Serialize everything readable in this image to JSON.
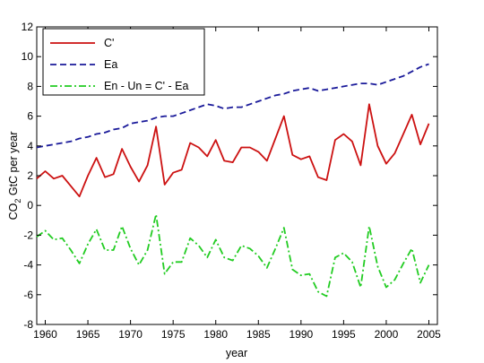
{
  "chart_data": {
    "type": "line",
    "xlabel": "year",
    "ylabel": "CO",
    "ylabel_sub": "2",
    "ylabel_rest": " GtC per year",
    "xlim": [
      1959,
      2006
    ],
    "ylim": [
      -8,
      12
    ],
    "xticks": [
      1960,
      1965,
      1970,
      1975,
      1980,
      1985,
      1990,
      1995,
      2000,
      2005
    ],
    "yticks": [
      -8,
      -6,
      -4,
      -2,
      0,
      2,
      4,
      6,
      8,
      10,
      12
    ],
    "grid": false,
    "legend_position": "top-left",
    "x": [
      1959,
      1960,
      1961,
      1962,
      1963,
      1964,
      1965,
      1966,
      1967,
      1968,
      1969,
      1970,
      1971,
      1972,
      1973,
      1974,
      1975,
      1976,
      1977,
      1978,
      1979,
      1980,
      1981,
      1982,
      1983,
      1984,
      1985,
      1986,
      1987,
      1988,
      1989,
      1990,
      1991,
      1992,
      1993,
      1994,
      1995,
      1996,
      1997,
      1998,
      1999,
      2000,
      2001,
      2002,
      2003,
      2004,
      2005
    ],
    "series": [
      {
        "name": "C'",
        "color": "#cc1111",
        "dash": "solid",
        "values": [
          1.8,
          2.3,
          1.8,
          2.0,
          1.3,
          0.6,
          2.0,
          3.2,
          1.9,
          2.1,
          3.8,
          2.6,
          1.6,
          2.7,
          5.3,
          1.4,
          2.2,
          2.4,
          4.2,
          3.9,
          3.3,
          4.4,
          3.0,
          2.9,
          3.9,
          3.9,
          3.6,
          3.0,
          4.5,
          6.0,
          3.4,
          3.1,
          3.3,
          1.9,
          1.7,
          4.4,
          4.8,
          4.3,
          2.7,
          6.8,
          4.0,
          2.8,
          3.5,
          4.8,
          6.1,
          4.1,
          5.5
        ]
      },
      {
        "name": "Ea",
        "color": "#1a1a9a",
        "dash": "dashed",
        "values": [
          3.9,
          4.0,
          4.1,
          4.2,
          4.3,
          4.5,
          4.6,
          4.8,
          4.9,
          5.1,
          5.2,
          5.5,
          5.6,
          5.7,
          5.9,
          6.0,
          6.0,
          6.2,
          6.4,
          6.6,
          6.8,
          6.7,
          6.5,
          6.6,
          6.6,
          6.8,
          7.0,
          7.2,
          7.4,
          7.5,
          7.7,
          7.8,
          7.9,
          7.7,
          7.8,
          7.9,
          8.0,
          8.1,
          8.2,
          8.2,
          8.1,
          8.3,
          8.5,
          8.7,
          9.0,
          9.3,
          9.5
        ]
      },
      {
        "name": "En - Un = C' - Ea",
        "color": "#22cc22",
        "dash": "dashdot",
        "values": [
          -2.1,
          -1.7,
          -2.3,
          -2.2,
          -3.0,
          -3.9,
          -2.6,
          -1.6,
          -3.0,
          -3.0,
          -1.4,
          -2.9,
          -4.0,
          -3.0,
          -0.6,
          -4.6,
          -3.8,
          -3.8,
          -2.2,
          -2.7,
          -3.5,
          -2.3,
          -3.5,
          -3.7,
          -2.7,
          -2.9,
          -3.4,
          -4.2,
          -2.9,
          -1.5,
          -4.3,
          -4.7,
          -4.6,
          -5.8,
          -6.1,
          -3.5,
          -3.2,
          -3.8,
          -5.5,
          -1.4,
          -4.1,
          -5.5,
          -5.0,
          -3.9,
          -2.9,
          -5.2,
          -4.0
        ]
      }
    ]
  }
}
